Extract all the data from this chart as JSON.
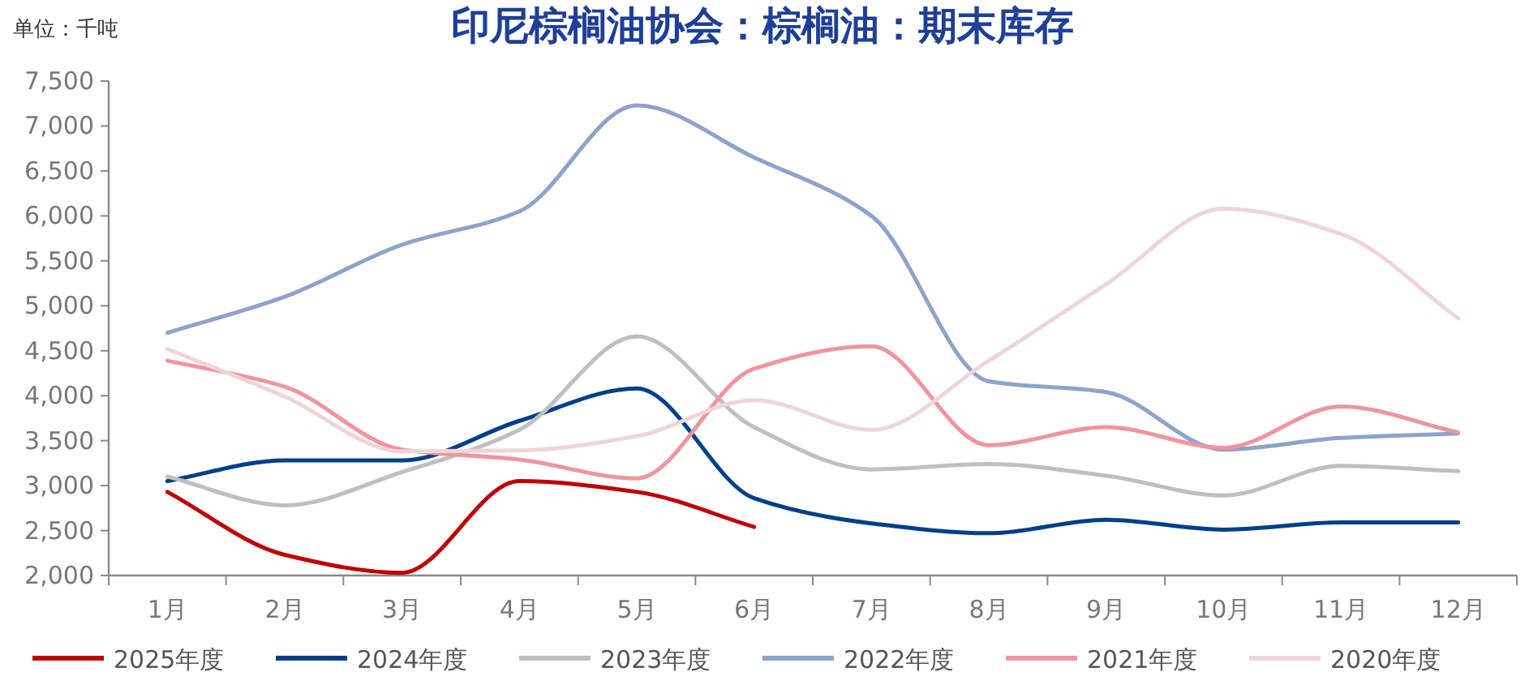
{
  "chart_data": {
    "type": "line",
    "title": "印尼棕榈油协会：棕榈油：期末库存",
    "annotations": [
      "单位：千吨"
    ],
    "categories": [
      "1月",
      "2月",
      "3月",
      "4月",
      "5月",
      "6月",
      "7月",
      "8月",
      "9月",
      "10月",
      "11月",
      "12月"
    ],
    "ylim": [
      2000,
      7500
    ],
    "yticks": [
      {
        "value": 2000,
        "label": "2,000"
      },
      {
        "value": 2500,
        "label": "2,500"
      },
      {
        "value": 3000,
        "label": "3,000"
      },
      {
        "value": 3500,
        "label": "3,500"
      },
      {
        "value": 4000,
        "label": "4,000"
      },
      {
        "value": 4500,
        "label": "4,500"
      },
      {
        "value": 5000,
        "label": "5,000"
      },
      {
        "value": 5500,
        "label": "5,500"
      },
      {
        "value": 6000,
        "label": "6,000"
      },
      {
        "value": 6500,
        "label": "6,500"
      },
      {
        "value": 7000,
        "label": "7,000"
      },
      {
        "value": 7500,
        "label": "7,500"
      }
    ],
    "grid": false,
    "legend": "bottom",
    "marker": "none",
    "line_style": "solid",
    "series": [
      {
        "name": "2025年度",
        "color": "#c00000",
        "values": [
          2930,
          2230,
          2030,
          3050,
          2930,
          2540,
          null,
          null,
          null,
          null,
          null,
          null
        ]
      },
      {
        "name": "2024年度",
        "color": "#003f8a",
        "values": [
          3050,
          3280,
          3280,
          3720,
          4080,
          2860,
          2580,
          2470,
          2620,
          2510,
          2590,
          2590
        ]
      },
      {
        "name": "2023年度",
        "color": "#bfbfbf",
        "values": [
          3100,
          2780,
          3150,
          3620,
          4660,
          3650,
          3180,
          3240,
          3110,
          2890,
          3220,
          3160
        ]
      },
      {
        "name": "2022年度",
        "color": "#8ea3cb",
        "values": [
          4700,
          5100,
          5680,
          6050,
          7230,
          6650,
          6000,
          4160,
          4040,
          3400,
          3530,
          3580
        ]
      },
      {
        "name": "2021年度",
        "color": "#f0949f",
        "values": [
          4390,
          4100,
          3400,
          3290,
          3080,
          4300,
          4550,
          3450,
          3650,
          3420,
          3880,
          3590
        ]
      },
      {
        "name": "2020年度",
        "color": "#efd5d8",
        "values": [
          4520,
          3990,
          3380,
          3390,
          3550,
          3950,
          3620,
          4390,
          5240,
          6080,
          5800,
          4860
        ]
      }
    ]
  }
}
